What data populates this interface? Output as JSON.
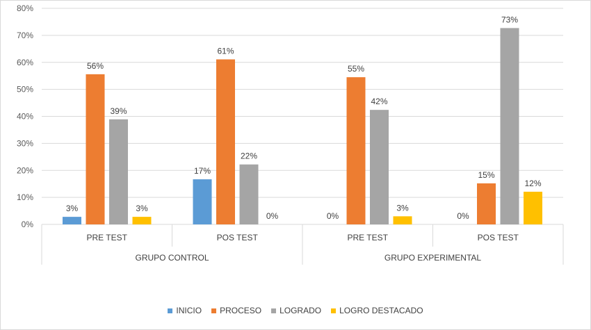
{
  "chart_data": {
    "type": "bar",
    "title": "",
    "xlabel": "",
    "ylabel": "",
    "ylim": [
      0,
      0.8
    ],
    "yticks": [
      "0%",
      "10%",
      "20%",
      "30%",
      "40%",
      "50%",
      "60%",
      "70%",
      "80%"
    ],
    "groups": [
      {
        "label": "GRUPO  CONTROL",
        "categories": [
          "PRE TEST",
          "POS TEST"
        ]
      },
      {
        "label": "GRUPO EXPERIMENTAL",
        "categories": [
          "PRE TEST",
          "POS TEST"
        ]
      }
    ],
    "categories": [
      "PRE TEST",
      "POS TEST",
      "PRE TEST",
      "POS TEST"
    ],
    "series": [
      {
        "name": "INICIO",
        "color": "#5b9bd5",
        "values": [
          0.028,
          0.167,
          0,
          0
        ],
        "labels": [
          "3%",
          "17%",
          "0%",
          "0%"
        ]
      },
      {
        "name": "PROCESO",
        "color": "#ed7d31",
        "values": [
          0.556,
          0.611,
          0.545,
          0.152
        ],
        "labels": [
          "56%",
          "61%",
          "55%",
          "15%"
        ]
      },
      {
        "name": "LOGRADO",
        "color": "#a5a5a5",
        "values": [
          0.389,
          0.222,
          0.424,
          0.727
        ],
        "labels": [
          "39%",
          "22%",
          "42%",
          "73%"
        ]
      },
      {
        "name": "LOGRO DESTACADO",
        "color": "#ffc000",
        "values": [
          0.028,
          0,
          0.03,
          0.121
        ],
        "labels": [
          "3%",
          "0%",
          "3%",
          "12%"
        ]
      }
    ],
    "legend_position": "bottom",
    "grid": true
  }
}
